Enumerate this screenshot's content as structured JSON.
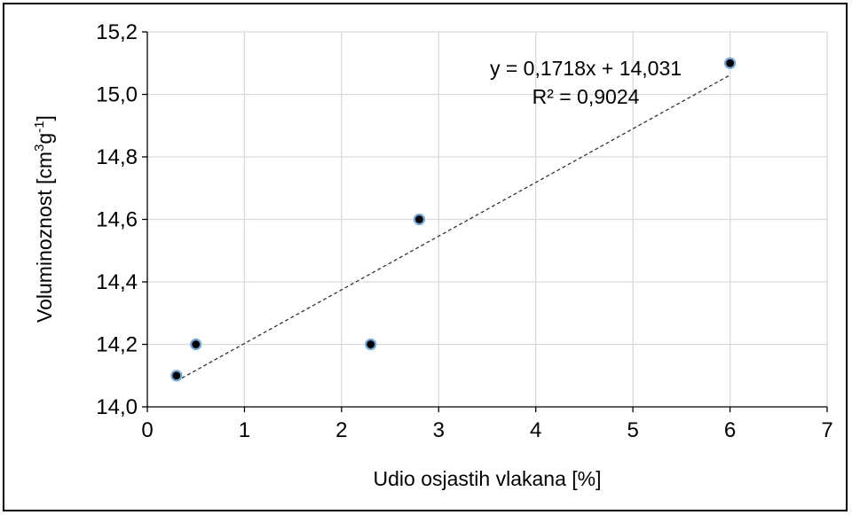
{
  "chart_data": {
    "type": "scatter",
    "xlabel": "Udio osjastih vlakana [%]",
    "ylabel": {
      "base": "Voluminoznost  [cm",
      "sup1": "3",
      "mid": "g",
      "sup2": "-1",
      "end": "]"
    },
    "xlim": [
      0,
      7
    ],
    "ylim": [
      14.0,
      15.2
    ],
    "x_ticks": [
      0,
      1,
      2,
      3,
      4,
      5,
      6,
      7
    ],
    "y_ticks": [
      14.0,
      14.2,
      14.4,
      14.6,
      14.8,
      15.0,
      15.2
    ],
    "x_tick_labels": [
      "0",
      "1",
      "2",
      "3",
      "4",
      "5",
      "6",
      "7"
    ],
    "y_tick_labels": [
      "14,0",
      "14,2",
      "14,4",
      "14,6",
      "14,8",
      "15,0",
      "15,2"
    ],
    "points": [
      {
        "x": 0.3,
        "y": 14.1
      },
      {
        "x": 0.5,
        "y": 14.2
      },
      {
        "x": 2.3,
        "y": 14.2
      },
      {
        "x": 2.8,
        "y": 14.6
      },
      {
        "x": 6.0,
        "y": 15.1
      }
    ],
    "trendline": {
      "type": "linear",
      "slope": 0.1718,
      "intercept": 14.031,
      "x_range": [
        0.3,
        6.0
      ],
      "equation": "y = 0,1718x + 14,031",
      "r_squared": "R² = 0,9024",
      "style": "dashed"
    },
    "grid": true,
    "legend": "none",
    "colors": {
      "marker_fill": "#000000",
      "marker_stroke": "#6fa8dc",
      "grid": "#d9d9d9",
      "trendline": "#333333"
    }
  }
}
